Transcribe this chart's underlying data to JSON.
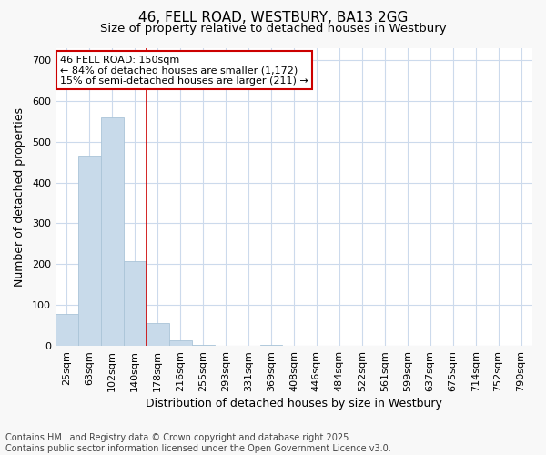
{
  "title": "46, FELL ROAD, WESTBURY, BA13 2GG",
  "subtitle": "Size of property relative to detached houses in Westbury",
  "xlabel": "Distribution of detached houses by size in Westbury",
  "ylabel": "Number of detached properties",
  "bar_color": "#c8daea",
  "bar_edge_color": "#aac4d8",
  "categories": [
    "25sqm",
    "63sqm",
    "102sqm",
    "140sqm",
    "178sqm",
    "216sqm",
    "255sqm",
    "293sqm",
    "331sqm",
    "369sqm",
    "408sqm",
    "446sqm",
    "484sqm",
    "522sqm",
    "561sqm",
    "599sqm",
    "637sqm",
    "675sqm",
    "714sqm",
    "752sqm",
    "790sqm"
  ],
  "values": [
    78,
    467,
    560,
    207,
    55,
    14,
    3,
    0,
    0,
    3,
    0,
    0,
    0,
    0,
    0,
    0,
    0,
    0,
    0,
    0,
    0
  ],
  "ylim": [
    0,
    730
  ],
  "yticks": [
    0,
    100,
    200,
    300,
    400,
    500,
    600,
    700
  ],
  "vline_color": "#cc0000",
  "annotation_line1": "46 FELL ROAD: 150sqm",
  "annotation_line2": "← 84% of detached houses are smaller (1,172)",
  "annotation_line3": "15% of semi-detached houses are larger (211) →",
  "annotation_box_facecolor": "#ffffff",
  "annotation_box_edgecolor": "#cc0000",
  "footer_line1": "Contains HM Land Registry data © Crown copyright and database right 2025.",
  "footer_line2": "Contains public sector information licensed under the Open Government Licence v3.0.",
  "fig_facecolor": "#f8f8f8",
  "plot_facecolor": "#ffffff",
  "grid_color": "#ccdaec",
  "title_fontsize": 11,
  "subtitle_fontsize": 9.5,
  "axis_label_fontsize": 9,
  "tick_fontsize": 8,
  "annotation_fontsize": 8,
  "footer_fontsize": 7
}
